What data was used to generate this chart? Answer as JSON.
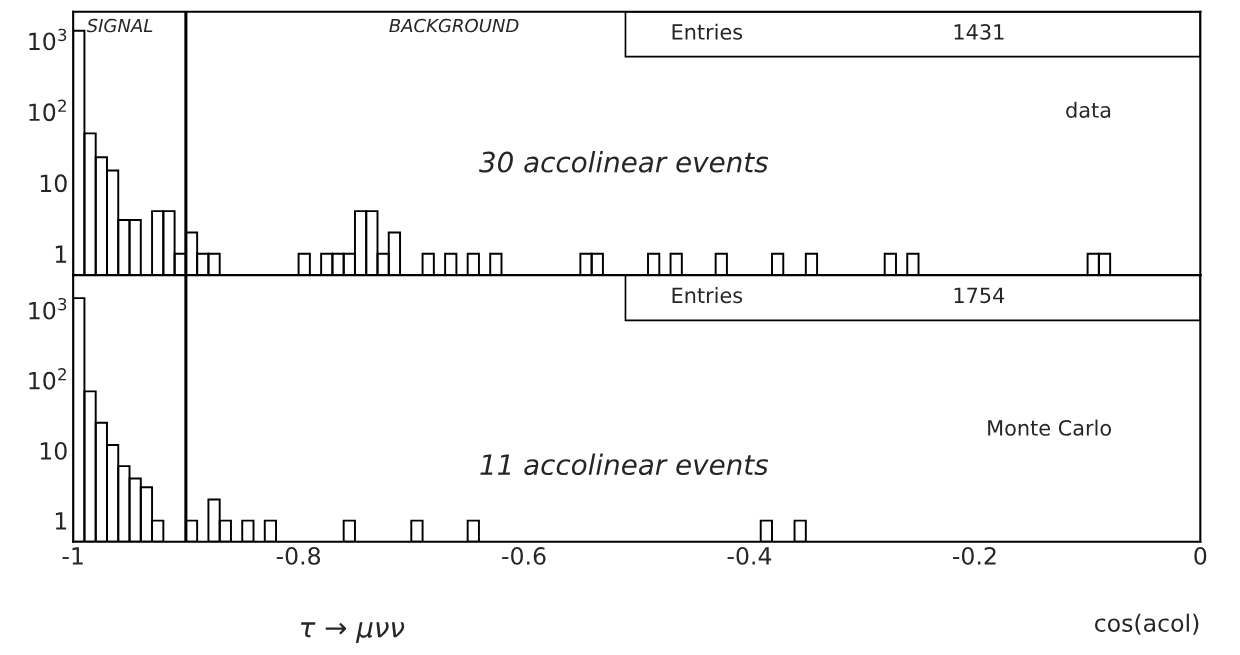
{
  "chart_data": [
    {
      "type": "histogram",
      "bins": [
        -1.0,
        -0.99,
        -0.98,
        -0.97,
        -0.96,
        -0.95,
        -0.94,
        -0.93,
        -0.92,
        -0.91,
        -0.9,
        -0.89,
        -0.88,
        -0.87,
        -0.86,
        -0.85,
        -0.84,
        -0.83,
        -0.82,
        -0.81,
        -0.8,
        -0.79,
        -0.78,
        -0.77,
        -0.76,
        -0.75,
        -0.74,
        -0.73,
        -0.72,
        -0.71,
        -0.7,
        -0.69,
        -0.68,
        -0.67,
        -0.66,
        -0.65,
        -0.64,
        -0.63,
        -0.62,
        -0.61,
        -0.6,
        -0.59,
        -0.58,
        -0.57,
        -0.56,
        -0.55,
        -0.54,
        -0.53,
        -0.52,
        -0.51,
        -0.5,
        -0.49,
        -0.48,
        -0.47,
        -0.46,
        -0.45,
        -0.44,
        -0.43,
        -0.42,
        -0.41,
        -0.4,
        -0.39,
        -0.38,
        -0.37,
        -0.36,
        -0.35,
        -0.34,
        -0.33,
        -0.32,
        -0.31,
        -0.3,
        -0.29,
        -0.28,
        -0.27,
        -0.26,
        -0.25,
        -0.24,
        -0.23,
        -0.22,
        -0.21,
        -0.2,
        -0.19,
        -0.18,
        -0.17,
        -0.16,
        -0.15,
        -0.14,
        -0.13,
        -0.12,
        -0.11,
        -0.1,
        -0.09,
        -0.08,
        -0.07,
        -0.06,
        -0.05,
        -0.04,
        -0.03,
        -0.02,
        -0.01,
        0.0
      ],
      "values": [
        1400,
        50,
        23,
        15,
        3,
        3,
        null,
        4,
        4,
        1,
        2,
        1,
        1,
        null,
        null,
        null,
        null,
        null,
        null,
        null,
        1,
        null,
        1,
        1,
        1,
        4,
        4,
        1,
        2,
        null,
        null,
        1,
        null,
        1,
        null,
        1,
        null,
        1,
        null,
        null,
        null,
        null,
        null,
        null,
        null,
        1,
        1,
        null,
        null,
        null,
        null,
        1,
        null,
        1,
        null,
        null,
        null,
        1,
        null,
        null,
        null,
        null,
        1,
        null,
        null,
        1,
        null,
        null,
        null,
        null,
        null,
        null,
        1,
        null,
        1,
        null,
        null,
        null,
        null,
        null,
        null,
        null,
        null,
        null,
        null,
        null,
        null,
        null,
        null,
        null,
        1,
        1,
        null,
        null,
        null,
        null,
        null,
        null,
        null,
        null
      ],
      "color": "#000000",
      "log": "y",
      "xlim": [
        -1,
        0
      ],
      "ylim": [
        0.5,
        2600
      ],
      "xticks": [
        -1,
        -0.8,
        -0.6,
        -0.4,
        -0.2,
        0
      ],
      "yticks": [
        {
          "value": 1,
          "label": "1"
        },
        {
          "value": 10,
          "label": "10"
        },
        {
          "value": 100,
          "label": "10$^{2}$"
        },
        {
          "value": 1000,
          "label": "10$^{3}$"
        }
      ],
      "tick_labels": "y",
      "grid": false,
      "ref_lines": [
        {
          "axis": "x",
          "value": -0.9
        }
      ],
      "annotations": [
        "SIGNAL",
        "BACKGROUND",
        "Entries",
        "1431",
        "data",
        "30 accolinear events"
      ]
    },
    {
      "type": "histogram",
      "bins": [
        -1.0,
        -0.99,
        -0.98,
        -0.97,
        -0.96,
        -0.95,
        -0.94,
        -0.93,
        -0.92,
        -0.91,
        -0.9,
        -0.89,
        -0.88,
        -0.87,
        -0.86,
        -0.85,
        -0.84,
        -0.83,
        -0.82,
        -0.81,
        -0.8,
        -0.79,
        -0.78,
        -0.77,
        -0.76,
        -0.75,
        -0.74,
        -0.73,
        -0.72,
        -0.71,
        -0.7,
        -0.69,
        -0.68,
        -0.67,
        -0.66,
        -0.65,
        -0.64,
        -0.63,
        -0.62,
        -0.61,
        -0.6,
        -0.59,
        -0.58,
        -0.57,
        -0.56,
        -0.55,
        -0.54,
        -0.53,
        -0.52,
        -0.51,
        -0.5,
        -0.49,
        -0.48,
        -0.47,
        -0.46,
        -0.45,
        -0.44,
        -0.43,
        -0.42,
        -0.41,
        -0.4,
        -0.39,
        -0.38,
        -0.37,
        -0.36,
        -0.35,
        -0.34,
        -0.33,
        -0.32,
        -0.31,
        -0.3,
        -0.29,
        -0.28,
        -0.27,
        -0.26,
        -0.25,
        -0.24,
        -0.23,
        -0.22,
        -0.21,
        -0.2,
        -0.19,
        -0.18,
        -0.17,
        -0.16,
        -0.15,
        -0.14,
        -0.13,
        -0.12,
        -0.11,
        -0.1,
        -0.09,
        -0.08,
        -0.07,
        -0.06,
        -0.05,
        -0.04,
        -0.03,
        -0.02,
        -0.01,
        0.0
      ],
      "values": [
        1500,
        70,
        25,
        12,
        6,
        4,
        3,
        1,
        null,
        null,
        1,
        null,
        2,
        1,
        null,
        1,
        null,
        1,
        null,
        null,
        null,
        null,
        null,
        null,
        1,
        null,
        null,
        null,
        null,
        null,
        1,
        null,
        null,
        null,
        null,
        1,
        null,
        null,
        null,
        null,
        null,
        null,
        null,
        null,
        null,
        null,
        null,
        null,
        null,
        null,
        null,
        null,
        null,
        null,
        null,
        null,
        null,
        null,
        null,
        null,
        null,
        1,
        null,
        null,
        1,
        null,
        null,
        null,
        null,
        null,
        null,
        null,
        null,
        null,
        null,
        null,
        null,
        null,
        null,
        null,
        null,
        null,
        null,
        null,
        null,
        null,
        null,
        null,
        null,
        null,
        null,
        null,
        null,
        null,
        null,
        null,
        null,
        null,
        null,
        null
      ],
      "color": "#000000",
      "log": "y",
      "xlim": [
        -1,
        0
      ],
      "ylim": [
        0.5,
        3200
      ],
      "xticks": [
        -1,
        -0.8,
        -0.6,
        -0.4,
        -0.2,
        0
      ],
      "yticks": [
        {
          "value": 1,
          "label": "1"
        },
        {
          "value": 10,
          "label": "10"
        },
        {
          "value": 100,
          "label": "10$^{2}$"
        },
        {
          "value": 1000,
          "label": "10$^{3}$"
        }
      ],
      "grid": false,
      "xlabel": "cos(acol)",
      "ref_lines": [
        {
          "axis": "x",
          "value": -0.9
        }
      ],
      "annotations": [
        "Entries",
        "1754",
        "Monte Carlo",
        "11 accolinear events",
        "τ → μνν"
      ]
    }
  ]
}
